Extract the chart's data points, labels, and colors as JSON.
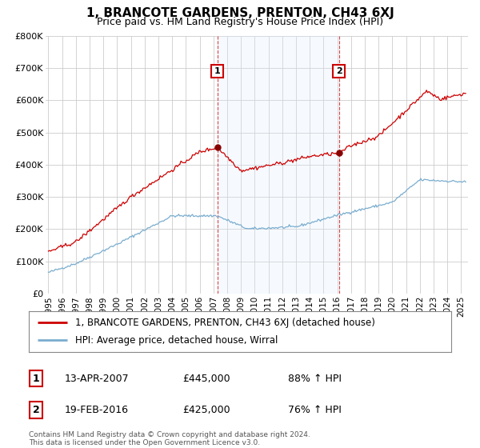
{
  "title": "1, BRANCOTE GARDENS, PRENTON, CH43 6XJ",
  "subtitle": "Price paid vs. HM Land Registry's House Price Index (HPI)",
  "red_label": "1, BRANCOTE GARDENS, PRENTON, CH43 6XJ (detached house)",
  "blue_label": "HPI: Average price, detached house, Wirral",
  "sale1_date": "13-APR-2007",
  "sale1_price": 445000,
  "sale1_pct": "88% ↑ HPI",
  "sale2_date": "19-FEB-2016",
  "sale2_price": 425000,
  "sale2_pct": "76% ↑ HPI",
  "sale1_x": 2007.28,
  "sale2_x": 2016.12,
  "ylim": [
    0,
    800000
  ],
  "xlim_left": 1994.8,
  "xlim_right": 2025.5,
  "ylabel_ticks": [
    0,
    100000,
    200000,
    300000,
    400000,
    500000,
    600000,
    700000,
    800000
  ],
  "xtick_years": [
    1995,
    1996,
    1997,
    1998,
    1999,
    2000,
    2001,
    2002,
    2003,
    2004,
    2005,
    2006,
    2007,
    2008,
    2009,
    2010,
    2011,
    2012,
    2013,
    2014,
    2015,
    2016,
    2017,
    2018,
    2019,
    2020,
    2021,
    2022,
    2023,
    2024,
    2025
  ],
  "background_color": "#ffffff",
  "grid_color": "#cccccc",
  "red_color": "#cc0000",
  "blue_color": "#7aadcf",
  "shade_color": "#ddeeff",
  "footnote": "Contains HM Land Registry data © Crown copyright and database right 2024.\nThis data is licensed under the Open Government Licence v3.0."
}
